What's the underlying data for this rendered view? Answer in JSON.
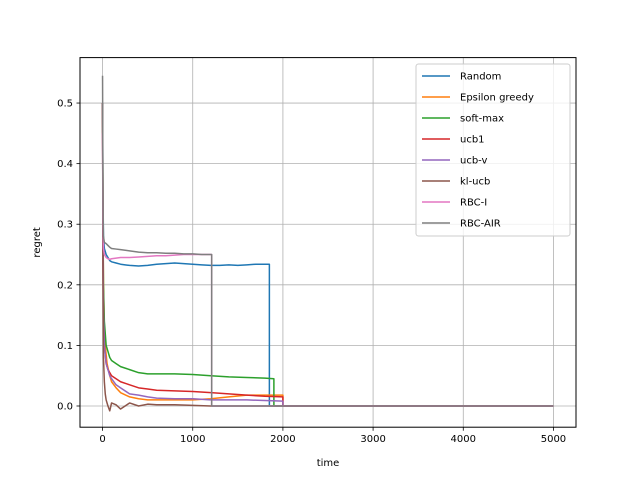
{
  "chart_data": {
    "type": "line",
    "xlabel": "time",
    "ylabel": "regret",
    "xlim": [
      -250,
      5250
    ],
    "ylim": [
      -0.035,
      0.575
    ],
    "xticks": [
      0,
      1000,
      2000,
      3000,
      4000,
      5000
    ],
    "xtick_labels": [
      "0",
      "1000",
      "2000",
      "3000",
      "4000",
      "5000"
    ],
    "yticks": [
      0.0,
      0.1,
      0.2,
      0.3,
      0.4,
      0.5
    ],
    "ytick_labels": [
      "0.0",
      "0.1",
      "0.2",
      "0.3",
      "0.4",
      "0.5"
    ],
    "grid": true,
    "legend_position": "upper right",
    "series": [
      {
        "name": "Random",
        "color": "#1f77b4",
        "x": [
          0,
          5,
          10,
          20,
          40,
          60,
          80,
          100,
          150,
          200,
          250,
          300,
          400,
          500,
          600,
          700,
          800,
          900,
          1000,
          1100,
          1200,
          1300,
          1400,
          1500,
          1600,
          1700,
          1800,
          1850,
          1850,
          1900,
          5000
        ],
        "y": [
          0.5,
          0.35,
          0.28,
          0.26,
          0.25,
          0.245,
          0.24,
          0.238,
          0.236,
          0.234,
          0.233,
          0.232,
          0.231,
          0.232,
          0.234,
          0.235,
          0.236,
          0.235,
          0.234,
          0.233,
          0.232,
          0.232,
          0.233,
          0.232,
          0.233,
          0.234,
          0.234,
          0.234,
          0.0,
          0.0,
          0.0
        ]
      },
      {
        "name": "Epsilon greedy",
        "color": "#ff7f0e",
        "x": [
          0,
          5,
          10,
          20,
          30,
          50,
          80,
          100,
          150,
          200,
          300,
          400,
          500,
          600,
          800,
          1000,
          1200,
          1400,
          1600,
          1800,
          2000,
          2000,
          2100,
          5000
        ],
        "y": [
          0.5,
          0.32,
          0.2,
          0.13,
          0.1,
          0.07,
          0.05,
          0.04,
          0.03,
          0.022,
          0.015,
          0.012,
          0.01,
          0.01,
          0.01,
          0.01,
          0.012,
          0.015,
          0.018,
          0.018,
          0.018,
          0.0,
          0.0,
          0.0
        ]
      },
      {
        "name": "soft-max",
        "color": "#2ca02c",
        "x": [
          0,
          5,
          10,
          20,
          40,
          60,
          80,
          100,
          150,
          200,
          300,
          400,
          500,
          600,
          800,
          1000,
          1200,
          1400,
          1600,
          1800,
          1900,
          1900,
          2000,
          5000
        ],
        "y": [
          0.5,
          0.3,
          0.2,
          0.14,
          0.1,
          0.09,
          0.08,
          0.075,
          0.07,
          0.065,
          0.06,
          0.055,
          0.053,
          0.053,
          0.053,
          0.052,
          0.05,
          0.048,
          0.047,
          0.046,
          0.045,
          0.0,
          0.0,
          0.0
        ]
      },
      {
        "name": "ucb1",
        "color": "#d62728",
        "x": [
          0,
          5,
          10,
          20,
          40,
          60,
          80,
          100,
          150,
          200,
          300,
          400,
          500,
          600,
          800,
          1000,
          1200,
          1400,
          1600,
          1800,
          2000,
          2000,
          2100,
          5000
        ],
        "y": [
          0.5,
          0.25,
          0.15,
          0.1,
          0.07,
          0.06,
          0.055,
          0.05,
          0.045,
          0.04,
          0.035,
          0.03,
          0.028,
          0.026,
          0.025,
          0.024,
          0.022,
          0.02,
          0.018,
          0.016,
          0.015,
          0.0,
          0.0,
          0.0
        ]
      },
      {
        "name": "ucb-v",
        "color": "#9467bd",
        "x": [
          0,
          5,
          10,
          20,
          40,
          60,
          80,
          100,
          150,
          200,
          300,
          400,
          500,
          600,
          800,
          1000,
          1200,
          1400,
          1600,
          1800,
          2000,
          2000,
          2100,
          5000
        ],
        "y": [
          0.5,
          0.25,
          0.15,
          0.1,
          0.07,
          0.06,
          0.05,
          0.045,
          0.035,
          0.03,
          0.02,
          0.018,
          0.015,
          0.013,
          0.012,
          0.012,
          0.01,
          0.01,
          0.01,
          0.009,
          0.008,
          0.0,
          0.0,
          0.0
        ]
      },
      {
        "name": "kl-ucb",
        "color": "#8c564b",
        "x": [
          0,
          5,
          10,
          20,
          30,
          40,
          60,
          80,
          100,
          150,
          200,
          300,
          400,
          500,
          600,
          800,
          1000,
          1200,
          1400,
          1600,
          2000,
          5000
        ],
        "y": [
          0.5,
          0.2,
          0.08,
          0.04,
          0.02,
          0.01,
          0.0,
          -0.008,
          0.005,
          0.002,
          -0.005,
          0.005,
          0.0,
          0.003,
          0.002,
          0.002,
          0.001,
          0.0,
          0.0,
          0.0,
          0.0,
          0.0
        ]
      },
      {
        "name": "RBC-I",
        "color": "#e377c2",
        "x": [
          0,
          5,
          10,
          20,
          40,
          60,
          80,
          100,
          150,
          200,
          300,
          400,
          500,
          600,
          700,
          800,
          900,
          1000,
          1100,
          1200,
          1210,
          1210,
          1300,
          5000
        ],
        "y": [
          0.45,
          0.3,
          0.26,
          0.25,
          0.245,
          0.243,
          0.242,
          0.243,
          0.244,
          0.245,
          0.245,
          0.246,
          0.247,
          0.248,
          0.248,
          0.249,
          0.25,
          0.25,
          0.25,
          0.25,
          0.25,
          0.0,
          0.0,
          0.0
        ]
      },
      {
        "name": "RBC-AIR",
        "color": "#7f7f7f",
        "x": [
          0,
          5,
          10,
          20,
          40,
          60,
          80,
          100,
          150,
          200,
          300,
          400,
          500,
          600,
          700,
          800,
          900,
          1000,
          1100,
          1200,
          1210,
          1210,
          1300,
          5000
        ],
        "y": [
          0.545,
          0.33,
          0.28,
          0.27,
          0.268,
          0.265,
          0.262,
          0.26,
          0.259,
          0.258,
          0.256,
          0.254,
          0.253,
          0.253,
          0.252,
          0.252,
          0.251,
          0.251,
          0.25,
          0.25,
          0.25,
          0.0,
          0.0,
          0.0
        ]
      }
    ]
  }
}
